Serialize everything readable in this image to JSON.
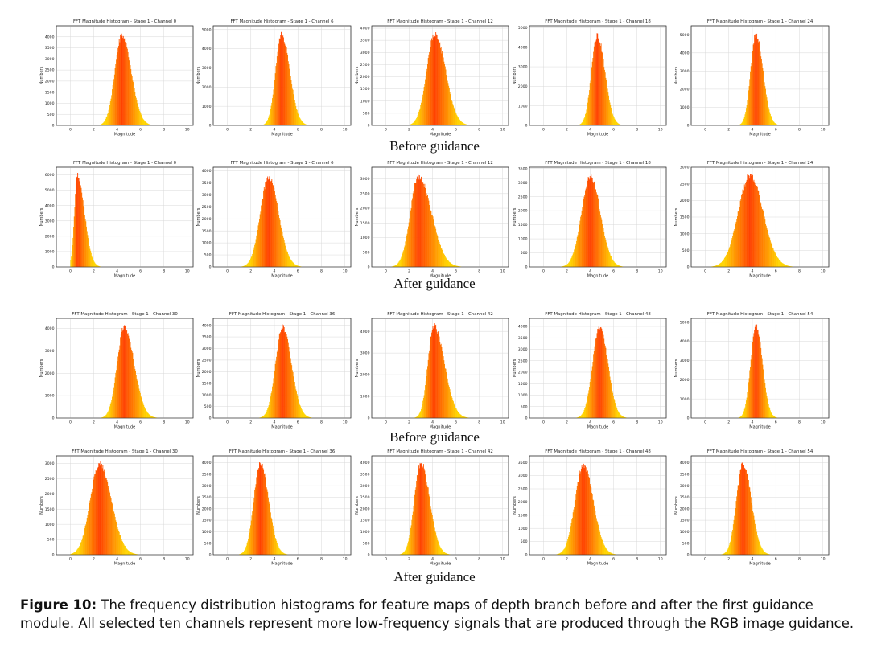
{
  "section_labels": [
    "Before guidance",
    "After guidance",
    "Before guidance",
    "After guidance"
  ],
  "caption": {
    "label": "Figure 10:",
    "text": " The frequency distribution histograms for feature maps of depth branch before and after the first guidance module. All selected ten channels represent more low-frequency signals that are produced through the RGB image guidance."
  },
  "colors": {
    "inner": "#ff4000",
    "outer": "#ffd400",
    "grid": "#d9d9d9",
    "axis": "#333333"
  },
  "chart_data": [
    {
      "type": "histogram",
      "title": "FFT Magnitude Histogram - Stage 1 - Channel 0",
      "xlabel": "Magnitude",
      "ylabel": "Numbers",
      "xlim": [
        -1.2,
        10.5
      ],
      "xticks": [
        0,
        2,
        4,
        6,
        8,
        10
      ],
      "yticks": [
        0,
        500,
        1000,
        1500,
        2000,
        2500,
        3000,
        3500,
        4000
      ],
      "ylim": [
        0,
        4500
      ],
      "peak_center": 4.4,
      "peak_value": 4200,
      "spread_left": 0.6,
      "spread_right": 0.8
    },
    {
      "type": "histogram",
      "title": "FFT Magnitude Histogram - Stage 1 - Channel 6",
      "xlabel": "Magnitude",
      "ylabel": "Numbers",
      "xlim": [
        -1.2,
        10.5
      ],
      "xticks": [
        0,
        2,
        4,
        6,
        8,
        10
      ],
      "yticks": [
        0,
        1000,
        2000,
        3000,
        4000,
        5000
      ],
      "ylim": [
        0,
        5200
      ],
      "peak_center": 4.6,
      "peak_value": 4900,
      "spread_left": 0.5,
      "spread_right": 0.7
    },
    {
      "type": "histogram",
      "title": "FFT Magnitude Histogram - Stage 1 - Channel 12",
      "xlabel": "Magnitude",
      "ylabel": "Numbers",
      "xlim": [
        -1.2,
        10.5
      ],
      "xticks": [
        0,
        2,
        4,
        6,
        8,
        10
      ],
      "yticks": [
        0,
        500,
        1000,
        1500,
        2000,
        2500,
        3000,
        3500,
        4000
      ],
      "ylim": [
        0,
        4100
      ],
      "peak_center": 4.2,
      "peak_value": 3900,
      "spread_left": 0.7,
      "spread_right": 0.9
    },
    {
      "type": "histogram",
      "title": "FFT Magnitude Histogram - Stage 1 - Channel 18",
      "xlabel": "Magnitude",
      "ylabel": "Numbers",
      "xlim": [
        -1.2,
        10.5
      ],
      "xticks": [
        0,
        2,
        4,
        6,
        8,
        10
      ],
      "yticks": [
        0,
        1000,
        2000,
        3000,
        4000,
        5000
      ],
      "ylim": [
        0,
        5100
      ],
      "peak_center": 4.6,
      "peak_value": 4750,
      "spread_left": 0.5,
      "spread_right": 0.65
    },
    {
      "type": "histogram",
      "title": "FFT Magnitude Histogram - Stage 1 - Channel 24",
      "xlabel": "Magnitude",
      "ylabel": "Numbers",
      "xlim": [
        -1.2,
        10.5
      ],
      "xticks": [
        0,
        2,
        4,
        6,
        8,
        10
      ],
      "yticks": [
        0,
        1000,
        2000,
        3000,
        4000,
        5000
      ],
      "ylim": [
        0,
        5500
      ],
      "peak_center": 4.3,
      "peak_value": 5200,
      "spread_left": 0.45,
      "spread_right": 0.6
    },
    {
      "type": "histogram",
      "title": "FFT Magnitude Histogram - Stage 1 - Channel 0",
      "xlabel": "Magnitude",
      "ylabel": "Numbers",
      "xlim": [
        -1.2,
        10.5
      ],
      "xticks": [
        0,
        2,
        4,
        6,
        8,
        10
      ],
      "yticks": [
        0,
        1000,
        2000,
        3000,
        4000,
        5000,
        6000
      ],
      "ylim": [
        0,
        6500
      ],
      "peak_center": 0.6,
      "peak_value": 6200,
      "spread_left": 0.25,
      "spread_right": 0.6
    },
    {
      "type": "histogram",
      "title": "FFT Magnitude Histogram - Stage 1 - Channel 6",
      "xlabel": "Magnitude",
      "ylabel": "Numbers",
      "xlim": [
        -1.2,
        10.5
      ],
      "xticks": [
        0,
        2,
        4,
        6,
        8,
        10
      ],
      "yticks": [
        0,
        500,
        1000,
        1500,
        2000,
        2500,
        3000,
        3500,
        4000
      ],
      "ylim": [
        0,
        4150
      ],
      "peak_center": 3.5,
      "peak_value": 3850,
      "spread_left": 0.7,
      "spread_right": 0.85
    },
    {
      "type": "histogram",
      "title": "FFT Magnitude Histogram - Stage 1 - Channel 12",
      "xlabel": "Magnitude",
      "ylabel": "Numbers",
      "xlim": [
        -1.2,
        10.5
      ],
      "xticks": [
        0,
        2,
        4,
        6,
        8,
        10
      ],
      "yticks": [
        0,
        500,
        1000,
        1500,
        2000,
        2500,
        3000
      ],
      "ylim": [
        0,
        3400
      ],
      "peak_center": 2.8,
      "peak_value": 3200,
      "spread_left": 0.7,
      "spread_right": 1.1
    },
    {
      "type": "histogram",
      "title": "FFT Magnitude Histogram - Stage 1 - Channel 18",
      "xlabel": "Magnitude",
      "ylabel": "Numbers",
      "xlim": [
        -1.2,
        10.5
      ],
      "xticks": [
        0,
        2,
        4,
        6,
        8,
        10
      ],
      "yticks": [
        0,
        500,
        1000,
        1500,
        2000,
        2500,
        3000,
        3500
      ],
      "ylim": [
        0,
        3550
      ],
      "peak_center": 4.0,
      "peak_value": 3350,
      "spread_left": 0.75,
      "spread_right": 0.85
    },
    {
      "type": "histogram",
      "title": "FFT Magnitude Histogram - Stage 1 - Channel 24",
      "xlabel": "Magnitude",
      "ylabel": "Numbers",
      "xlim": [
        -1.2,
        10.5
      ],
      "xticks": [
        0,
        2,
        4,
        6,
        8,
        10
      ],
      "yticks": [
        0,
        500,
        1000,
        1500,
        2000,
        2500,
        3000
      ],
      "ylim": [
        0,
        3000
      ],
      "peak_center": 3.8,
      "peak_value": 2850,
      "spread_left": 1.0,
      "spread_right": 1.1
    },
    {
      "type": "histogram",
      "title": "FFT Magnitude Histogram - Stage 1 - Channel 30",
      "xlabel": "Magnitude",
      "ylabel": "Numbers",
      "xlim": [
        -1.2,
        10.5
      ],
      "xticks": [
        0,
        2,
        4,
        6,
        8,
        10
      ],
      "yticks": [
        0,
        1000,
        2000,
        3000,
        4000
      ],
      "ylim": [
        0,
        4450
      ],
      "peak_center": 4.6,
      "peak_value": 4200,
      "spread_left": 0.6,
      "spread_right": 0.85
    },
    {
      "type": "histogram",
      "title": "FFT Magnitude Histogram - Stage 1 - Channel 36",
      "xlabel": "Magnitude",
      "ylabel": "Numbers",
      "xlim": [
        -1.2,
        10.5
      ],
      "xticks": [
        0,
        2,
        4,
        6,
        8,
        10
      ],
      "yticks": [
        0,
        500,
        1000,
        1500,
        2000,
        2500,
        3000,
        3500,
        4000
      ],
      "ylim": [
        0,
        4300
      ],
      "peak_center": 4.7,
      "peak_value": 4050,
      "spread_left": 0.6,
      "spread_right": 0.75
    },
    {
      "type": "histogram",
      "title": "FFT Magnitude Histogram - Stage 1 - Channel 42",
      "xlabel": "Magnitude",
      "ylabel": "Numbers",
      "xlim": [
        -1.2,
        10.5
      ],
      "xticks": [
        0,
        2,
        4,
        6,
        8,
        10
      ],
      "yticks": [
        0,
        1000,
        2000,
        3000,
        4000
      ],
      "ylim": [
        0,
        4600
      ],
      "peak_center": 4.1,
      "peak_value": 4400,
      "spread_left": 0.5,
      "spread_right": 0.9
    },
    {
      "type": "histogram",
      "title": "FFT Magnitude Histogram - Stage 1 - Channel 48",
      "xlabel": "Magnitude",
      "ylabel": "Numbers",
      "xlim": [
        -1.2,
        10.5
      ],
      "xticks": [
        0,
        2,
        4,
        6,
        8,
        10
      ],
      "yticks": [
        0,
        500,
        1000,
        1500,
        2000,
        2500,
        3000,
        3500,
        4000
      ],
      "ylim": [
        0,
        4350
      ],
      "peak_center": 4.8,
      "peak_value": 4100,
      "spread_left": 0.6,
      "spread_right": 0.7
    },
    {
      "type": "histogram",
      "title": "FFT Magnitude Histogram - Stage 1 - Channel 54",
      "xlabel": "Magnitude",
      "ylabel": "Numbers",
      "xlim": [
        -1.2,
        10.5
      ],
      "xticks": [
        0,
        2,
        4,
        6,
        8,
        10
      ],
      "yticks": [
        0,
        1000,
        2000,
        3000,
        4000,
        5000
      ],
      "ylim": [
        0,
        5200
      ],
      "peak_center": 4.3,
      "peak_value": 5000,
      "spread_left": 0.45,
      "spread_right": 0.55
    },
    {
      "type": "histogram",
      "title": "FFT Magnitude Histogram - Stage 1 - Channel 30",
      "xlabel": "Magnitude",
      "ylabel": "Numbers",
      "xlim": [
        -1.2,
        10.5
      ],
      "xticks": [
        0,
        2,
        4,
        6,
        8,
        10
      ],
      "yticks": [
        0,
        500,
        1000,
        1500,
        2000,
        2500,
        3000
      ],
      "ylim": [
        0,
        3250
      ],
      "peak_center": 2.5,
      "peak_value": 3100,
      "spread_left": 0.8,
      "spread_right": 1.0
    },
    {
      "type": "histogram",
      "title": "FFT Magnitude Histogram - Stage 1 - Channel 36",
      "xlabel": "Magnitude",
      "ylabel": "Numbers",
      "xlim": [
        -1.2,
        10.5
      ],
      "xticks": [
        0,
        2,
        4,
        6,
        8,
        10
      ],
      "yticks": [
        0,
        500,
        1000,
        1500,
        2000,
        2500,
        3000,
        3500,
        4000
      ],
      "ylim": [
        0,
        4300
      ],
      "peak_center": 2.8,
      "peak_value": 4150,
      "spread_left": 0.55,
      "spread_right": 0.7
    },
    {
      "type": "histogram",
      "title": "FFT Magnitude Histogram - Stage 1 - Channel 42",
      "xlabel": "Magnitude",
      "ylabel": "Numbers",
      "xlim": [
        -1.2,
        10.5
      ],
      "xticks": [
        0,
        2,
        4,
        6,
        8,
        10
      ],
      "yticks": [
        0,
        500,
        1000,
        1500,
        2000,
        2500,
        3000,
        3500,
        4000
      ],
      "ylim": [
        0,
        4300
      ],
      "peak_center": 3.0,
      "peak_value": 4150,
      "spread_left": 0.55,
      "spread_right": 0.75
    },
    {
      "type": "histogram",
      "title": "FFT Magnitude Histogram - Stage 1 - Channel 48",
      "xlabel": "Magnitude",
      "ylabel": "Numbers",
      "xlim": [
        -1.2,
        10.5
      ],
      "xticks": [
        0,
        2,
        4,
        6,
        8,
        10
      ],
      "yticks": [
        0,
        500,
        1000,
        1500,
        2000,
        2500,
        3000,
        3500
      ],
      "ylim": [
        0,
        3750
      ],
      "peak_center": 3.4,
      "peak_value": 3550,
      "spread_left": 0.7,
      "spread_right": 0.85
    },
    {
      "type": "histogram",
      "title": "FFT Magnitude Histogram - Stage 1 - Channel 54",
      "xlabel": "Magnitude",
      "ylabel": "Numbers",
      "xlim": [
        -1.2,
        10.5
      ],
      "xticks": [
        0,
        2,
        4,
        6,
        8,
        10
      ],
      "yticks": [
        0,
        500,
        1000,
        1500,
        2000,
        2500,
        3000,
        3500,
        4000
      ],
      "ylim": [
        0,
        4300
      ],
      "peak_center": 3.2,
      "peak_value": 4100,
      "spread_left": 0.55,
      "spread_right": 0.7
    }
  ]
}
